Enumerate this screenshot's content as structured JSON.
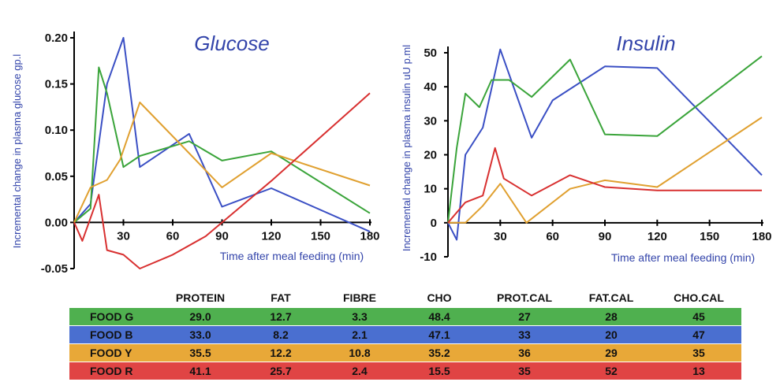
{
  "chart_data": [
    {
      "type": "line",
      "title": "Glucose",
      "xlabel": "Time after meal feeding (min)",
      "ylabel": "Incremental change in plasma glucose gp.l",
      "xlim": [
        0,
        180
      ],
      "ylim": [
        -0.05,
        0.2
      ],
      "xticks": [
        "30",
        "60",
        "90",
        "120",
        "150",
        "180"
      ],
      "yticks": [
        "0.20",
        "0.15",
        "0.10",
        "0.05",
        "0.00",
        "-0.05"
      ],
      "grid": false,
      "series": [
        {
          "color": "#3a4fc4",
          "x": [
            0,
            10,
            20,
            30,
            40,
            70,
            90,
            120,
            180
          ],
          "y": [
            0,
            0.02,
            0.15,
            0.2,
            0.06,
            0.096,
            0.017,
            0.037,
            -0.01
          ]
        },
        {
          "color": "#3aa43a",
          "x": [
            0,
            10,
            15,
            20,
            30,
            40,
            70,
            90,
            120,
            180
          ],
          "y": [
            0,
            0.015,
            0.168,
            0.14,
            0.06,
            0.072,
            0.088,
            0.067,
            0.077,
            0.01
          ]
        },
        {
          "color": "#e0a030",
          "x": [
            0,
            10,
            20,
            28,
            40,
            70,
            90,
            120,
            180
          ],
          "y": [
            0,
            0.038,
            0.046,
            0.068,
            0.13,
            0.075,
            0.038,
            0.075,
            0.04
          ]
        },
        {
          "color": "#d83030",
          "x": [
            0,
            5,
            15,
            20,
            30,
            40,
            60,
            80,
            120,
            180
          ],
          "y": [
            0,
            -0.02,
            0.03,
            -0.03,
            -0.035,
            -0.05,
            -0.035,
            -0.015,
            0.045,
            0.14
          ]
        }
      ]
    },
    {
      "type": "line",
      "title": "Insulin",
      "xlabel": "Time after meal feeding (min)",
      "ylabel": "Incremental change in plasma insulin uU p.ml",
      "xlim": [
        0,
        180
      ],
      "ylim": [
        -10,
        50
      ],
      "xticks": [
        "30",
        "60",
        "90",
        "120",
        "150",
        "180"
      ],
      "yticks": [
        "50",
        "40",
        "30",
        "20",
        "10",
        "0",
        "-10"
      ],
      "grid": false,
      "series": [
        {
          "color": "#3a4fc4",
          "x": [
            0,
            5,
            10,
            20,
            30,
            48,
            60,
            90,
            120,
            180
          ],
          "y": [
            0,
            -5,
            20,
            28,
            51,
            25,
            36,
            46,
            45.5,
            14
          ]
        },
        {
          "color": "#3aa43a",
          "x": [
            0,
            5,
            10,
            18,
            25,
            35,
            48,
            70,
            90,
            120,
            180
          ],
          "y": [
            0,
            22,
            38,
            34,
            42,
            42,
            37,
            48,
            26,
            25.5,
            49
          ]
        },
        {
          "color": "#e0a030",
          "x": [
            0,
            10,
            20,
            30,
            45,
            70,
            90,
            120,
            180
          ],
          "y": [
            0,
            0,
            5,
            11.5,
            0,
            10,
            12.5,
            10.5,
            31
          ]
        },
        {
          "color": "#d83030",
          "x": [
            0,
            10,
            20,
            27,
            32,
            48,
            70,
            90,
            120,
            180
          ],
          "y": [
            0,
            6,
            8,
            22,
            13,
            8,
            14,
            10.5,
            9.5,
            9.5
          ]
        }
      ]
    }
  ],
  "table": {
    "headers": [
      "",
      "PROTEIN",
      "FAT",
      "FIBRE",
      "CHO",
      "PROT.CAL",
      "FAT.CAL",
      "CHO.CAL"
    ],
    "rows": [
      {
        "color": "#4fb04f",
        "cells": [
          "FOOD G",
          "29.0",
          "12.7",
          "3.3",
          "48.4",
          "27",
          "28",
          "45"
        ]
      },
      {
        "color": "#4a6fd0",
        "cells": [
          "FOOD B",
          "33.0",
          "8.2",
          "2.1",
          "47.1",
          "33",
          "20",
          "47"
        ]
      },
      {
        "color": "#e8a838",
        "cells": [
          "FOOD Y",
          "35.5",
          "12.2",
          "10.8",
          "35.2",
          "36",
          "29",
          "35"
        ]
      },
      {
        "color": "#e04444",
        "cells": [
          "FOOD R",
          "41.1",
          "25.7",
          "2.4",
          "15.5",
          "35",
          "52",
          "13"
        ]
      }
    ]
  }
}
